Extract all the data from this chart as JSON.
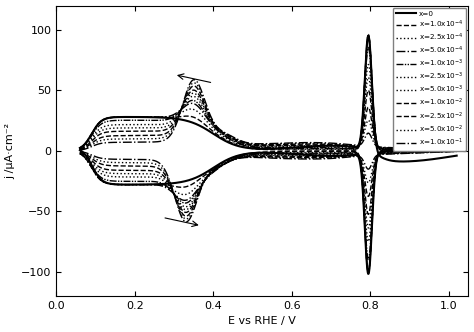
{
  "xlabel": "E vs RHE / V",
  "ylabel": "j /μA·cm⁻²",
  "xlim": [
    0.05,
    1.05
  ],
  "ylim": [
    -120,
    120
  ],
  "xticks": [
    0.0,
    0.2,
    0.4,
    0.6,
    0.8,
    1.0
  ],
  "yticks": [
    -100,
    -50,
    0,
    50,
    100
  ],
  "legend_labels": [
    "x=0",
    "x=1.0x10$^{-4}$",
    "x=2.5x10$^{-4}$",
    "x=5.0x10$^{-4}$",
    "x=1.0x10$^{-3}$",
    "x=2.5x10$^{-3}$",
    "x=5.0x10$^{-3}$",
    "x=1.0x10$^{-2}$",
    "x=2.5x10$^{-2}$",
    "x=5.0x10$^{-2}$",
    "x=1.0x10$^{-1}$"
  ],
  "ls_list": [
    "-",
    "--",
    ":",
    "-.",
    "-.",
    ":",
    ":",
    "--",
    "--",
    ":",
    "-."
  ],
  "lw_list": [
    1.5,
    1.0,
    1.0,
    1.0,
    1.0,
    1.0,
    1.0,
    1.0,
    1.0,
    1.0,
    1.0
  ],
  "background_color": "#ffffff"
}
